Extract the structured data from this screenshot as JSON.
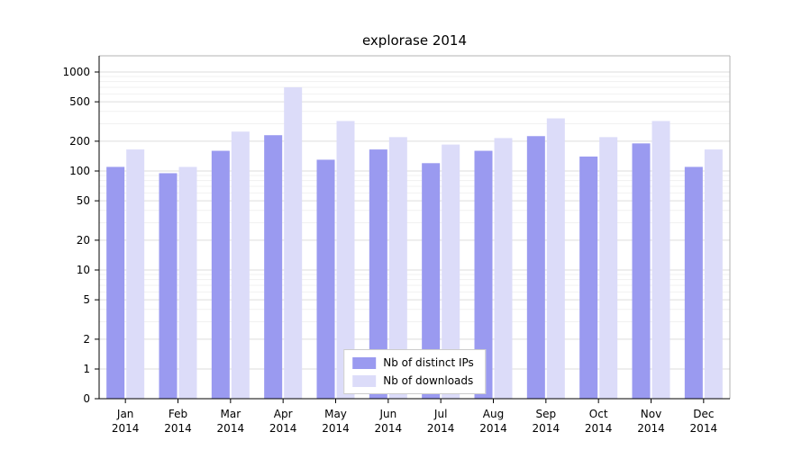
{
  "colors": {
    "series_ips": "#9a9af0",
    "series_downloads": "#dcdcf9",
    "grid_major": "#dddddd",
    "grid_minor": "#f1f1f1",
    "spine": "#000000",
    "spine_light": "#b3b3b3",
    "background": "#ffffff"
  },
  "chart_data": {
    "type": "bar",
    "title": "explorase 2014",
    "xlabel": "",
    "ylabel": "",
    "yscale": "log",
    "ylim": [
      0,
      1000
    ],
    "yticks": [
      0,
      1,
      2,
      5,
      10,
      20,
      50,
      100,
      200,
      500,
      1000
    ],
    "grid": "horizontal",
    "legend_position": "bottom-center-inside",
    "categories": [
      "Jan 2014",
      "Feb 2014",
      "Mar 2014",
      "Apr 2014",
      "May 2014",
      "Jun 2014",
      "Jul 2014",
      "Aug 2014",
      "Sep 2014",
      "Oct 2014",
      "Nov 2014",
      "Dec 2014"
    ],
    "series": [
      {
        "name": "Nb of distinct IPs",
        "values": [
          110,
          95,
          160,
          230,
          130,
          165,
          120,
          160,
          225,
          140,
          190,
          110
        ]
      },
      {
        "name": "Nb of downloads",
        "values": [
          165,
          110,
          250,
          700,
          320,
          220,
          185,
          215,
          340,
          220,
          320,
          165
        ]
      }
    ]
  }
}
